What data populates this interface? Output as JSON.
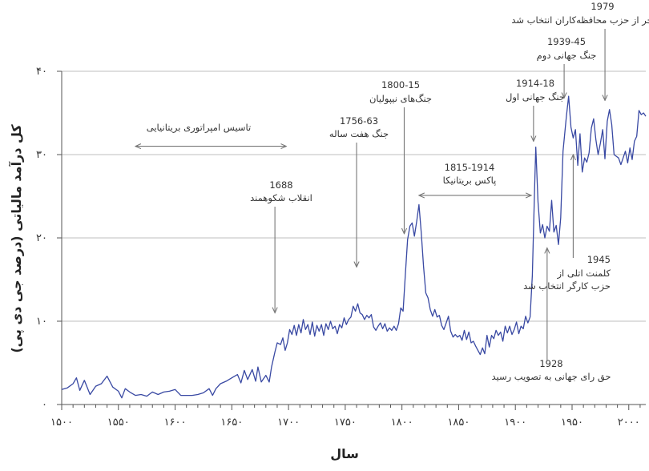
{
  "chart_data": {
    "type": "line",
    "title": "",
    "xlabel": "سال",
    "ylabel": "کل درآمد مالیاتی (درصد جی دی پی)",
    "xlim": [
      1500,
      2015
    ],
    "ylim": [
      0,
      40
    ],
    "x_ticks": [
      1500,
      1550,
      1600,
      1650,
      1700,
      1750,
      1800,
      1850,
      1900,
      1950,
      2000
    ],
    "x_tick_labels": [
      "۱۵۰۰",
      "۱۵۵۰",
      "۱۶۰۰",
      "۱۶۵۰",
      "۱۷۰۰",
      "۱۷۵۰",
      "۱۸۰۰",
      "۱۸۵۰",
      "۱۹۰۰",
      "۱۹۵۰",
      "۲۰۰۰"
    ],
    "y_ticks": [
      0,
      10,
      20,
      30,
      40
    ],
    "y_tick_labels": [
      "۰",
      "۱۰",
      "۲۰",
      "۳۰",
      "۴۰"
    ],
    "grid": true,
    "series": [
      {
        "name": "کل درآمد مالیاتی",
        "color": "#3949a3",
        "points": [
          [
            1500,
            1.8
          ],
          [
            1505,
            2.0
          ],
          [
            1510,
            2.5
          ],
          [
            1513,
            3.2
          ],
          [
            1516,
            1.7
          ],
          [
            1520,
            2.9
          ],
          [
            1525,
            1.2
          ],
          [
            1530,
            2.2
          ],
          [
            1535,
            2.5
          ],
          [
            1540,
            3.4
          ],
          [
            1545,
            2.1
          ],
          [
            1550,
            1.6
          ],
          [
            1553,
            0.8
          ],
          [
            1556,
            1.9
          ],
          [
            1560,
            1.5
          ],
          [
            1565,
            1.1
          ],
          [
            1570,
            1.2
          ],
          [
            1575,
            1.0
          ],
          [
            1580,
            1.5
          ],
          [
            1585,
            1.2
          ],
          [
            1590,
            1.5
          ],
          [
            1595,
            1.6
          ],
          [
            1600,
            1.8
          ],
          [
            1605,
            1.1
          ],
          [
            1610,
            1.1
          ],
          [
            1615,
            1.1
          ],
          [
            1620,
            1.2
          ],
          [
            1625,
            1.4
          ],
          [
            1630,
            1.9
          ],
          [
            1633,
            1.1
          ],
          [
            1636,
            1.9
          ],
          [
            1640,
            2.5
          ],
          [
            1645,
            2.8
          ],
          [
            1650,
            3.2
          ],
          [
            1655,
            3.6
          ],
          [
            1658,
            2.6
          ],
          [
            1661,
            4.1
          ],
          [
            1664,
            3.0
          ],
          [
            1668,
            4.2
          ],
          [
            1671,
            2.8
          ],
          [
            1673,
            4.5
          ],
          [
            1676,
            2.7
          ],
          [
            1680,
            3.5
          ],
          [
            1683,
            2.7
          ],
          [
            1685,
            4.5
          ],
          [
            1688,
            6.3
          ],
          [
            1690,
            7.4
          ],
          [
            1693,
            7.2
          ],
          [
            1695,
            8.0
          ],
          [
            1697,
            6.5
          ],
          [
            1699,
            7.4
          ],
          [
            1701,
            9.0
          ],
          [
            1703,
            8.4
          ],
          [
            1705,
            9.5
          ],
          [
            1707,
            8.3
          ],
          [
            1709,
            9.6
          ],
          [
            1711,
            8.6
          ],
          [
            1713,
            10.2
          ],
          [
            1715,
            9.0
          ],
          [
            1717,
            9.6
          ],
          [
            1719,
            8.4
          ],
          [
            1721,
            9.9
          ],
          [
            1723,
            8.2
          ],
          [
            1725,
            9.5
          ],
          [
            1727,
            8.8
          ],
          [
            1729,
            9.6
          ],
          [
            1731,
            8.3
          ],
          [
            1733,
            9.7
          ],
          [
            1735,
            9.0
          ],
          [
            1737,
            10.0
          ],
          [
            1739,
            9.1
          ],
          [
            1741,
            9.4
          ],
          [
            1743,
            8.5
          ],
          [
            1745,
            9.6
          ],
          [
            1747,
            9.2
          ],
          [
            1749,
            10.4
          ],
          [
            1751,
            9.6
          ],
          [
            1753,
            10.2
          ],
          [
            1755,
            10.5
          ],
          [
            1757,
            11.8
          ],
          [
            1759,
            11.2
          ],
          [
            1761,
            12.1
          ],
          [
            1763,
            11.0
          ],
          [
            1765,
            10.8
          ],
          [
            1767,
            10.2
          ],
          [
            1769,
            10.7
          ],
          [
            1771,
            10.4
          ],
          [
            1773,
            10.8
          ],
          [
            1775,
            9.3
          ],
          [
            1777,
            8.9
          ],
          [
            1779,
            9.4
          ],
          [
            1781,
            9.8
          ],
          [
            1783,
            9.1
          ],
          [
            1785,
            9.7
          ],
          [
            1787,
            8.8
          ],
          [
            1789,
            9.2
          ],
          [
            1791,
            8.9
          ],
          [
            1793,
            9.4
          ],
          [
            1795,
            8.9
          ],
          [
            1797,
            9.7
          ],
          [
            1799,
            11.6
          ],
          [
            1801,
            11.2
          ],
          [
            1803,
            15.6
          ],
          [
            1805,
            19.8
          ],
          [
            1807,
            21.4
          ],
          [
            1809,
            21.8
          ],
          [
            1811,
            20.2
          ],
          [
            1813,
            22.0
          ],
          [
            1815,
            24.0
          ],
          [
            1817,
            20.7
          ],
          [
            1819,
            16.6
          ],
          [
            1821,
            13.4
          ],
          [
            1823,
            12.8
          ],
          [
            1825,
            11.4
          ],
          [
            1827,
            10.6
          ],
          [
            1829,
            11.4
          ],
          [
            1831,
            10.5
          ],
          [
            1833,
            10.7
          ],
          [
            1835,
            9.5
          ],
          [
            1837,
            9.0
          ],
          [
            1839,
            9.8
          ],
          [
            1841,
            10.6
          ],
          [
            1843,
            8.8
          ],
          [
            1845,
            8.1
          ],
          [
            1847,
            8.4
          ],
          [
            1849,
            8.1
          ],
          [
            1851,
            8.3
          ],
          [
            1853,
            7.7
          ],
          [
            1855,
            8.9
          ],
          [
            1857,
            7.8
          ],
          [
            1859,
            8.7
          ],
          [
            1861,
            7.4
          ],
          [
            1863,
            7.6
          ],
          [
            1865,
            7.0
          ],
          [
            1867,
            6.5
          ],
          [
            1869,
            6.0
          ],
          [
            1871,
            6.8
          ],
          [
            1873,
            6.1
          ],
          [
            1875,
            8.3
          ],
          [
            1877,
            6.9
          ],
          [
            1879,
            8.3
          ],
          [
            1881,
            7.9
          ],
          [
            1883,
            8.9
          ],
          [
            1885,
            8.3
          ],
          [
            1887,
            8.7
          ],
          [
            1889,
            7.6
          ],
          [
            1891,
            9.4
          ],
          [
            1893,
            8.6
          ],
          [
            1895,
            9.4
          ],
          [
            1897,
            8.4
          ],
          [
            1899,
            9.0
          ],
          [
            1901,
            9.9
          ],
          [
            1903,
            8.5
          ],
          [
            1905,
            9.4
          ],
          [
            1907,
            9.1
          ],
          [
            1909,
            10.6
          ],
          [
            1911,
            9.8
          ],
          [
            1913,
            10.5
          ],
          [
            1915,
            15.5
          ],
          [
            1917,
            26.2
          ],
          [
            1918,
            30.9
          ],
          [
            1920,
            24.3
          ],
          [
            1922,
            20.6
          ],
          [
            1924,
            21.6
          ],
          [
            1926,
            20.0
          ],
          [
            1928,
            21.4
          ],
          [
            1930,
            20.8
          ],
          [
            1932,
            24.5
          ],
          [
            1934,
            20.7
          ],
          [
            1936,
            21.5
          ],
          [
            1938,
            19.2
          ],
          [
            1940,
            22.4
          ],
          [
            1942,
            30.4
          ],
          [
            1944,
            33.2
          ],
          [
            1945,
            34.6
          ],
          [
            1947,
            37.0
          ],
          [
            1949,
            33.3
          ],
          [
            1951,
            32.0
          ],
          [
            1953,
            33.0
          ],
          [
            1955,
            28.7
          ],
          [
            1957,
            32.5
          ],
          [
            1959,
            27.9
          ],
          [
            1961,
            29.6
          ],
          [
            1963,
            29.1
          ],
          [
            1965,
            30.2
          ],
          [
            1967,
            33.2
          ],
          [
            1969,
            34.3
          ],
          [
            1971,
            31.8
          ],
          [
            1973,
            30.0
          ],
          [
            1975,
            31.4
          ],
          [
            1977,
            33.0
          ],
          [
            1979,
            29.5
          ],
          [
            1981,
            34.0
          ],
          [
            1983,
            35.4
          ],
          [
            1985,
            33.6
          ],
          [
            1987,
            30.0
          ],
          [
            1989,
            29.8
          ],
          [
            1991,
            29.6
          ],
          [
            1993,
            28.8
          ],
          [
            1995,
            29.6
          ],
          [
            1997,
            30.4
          ],
          [
            1999,
            29.0
          ],
          [
            2001,
            30.8
          ],
          [
            2003,
            29.4
          ],
          [
            2005,
            31.6
          ],
          [
            2007,
            32.2
          ],
          [
            2009,
            35.3
          ],
          [
            2011,
            34.8
          ],
          [
            2013,
            35.0
          ],
          [
            2015,
            34.6
          ]
        ]
      }
    ],
    "annotations": [
      {
        "id": "empire",
        "year_label": "",
        "text": "تاسیس امپراتوری بریتانیایی",
        "range": [
          1565,
          1698
        ],
        "at_y": 31.0
      },
      {
        "id": "glorious",
        "year_label": "1688",
        "text": "انقلاب شکوهمند",
        "arrow_x": 1688,
        "arrow_to_y": 11.0
      },
      {
        "id": "seven-years",
        "year_label": "1756-63",
        "text": "جنگ هفت ساله",
        "arrow_x": 1760,
        "arrow_to_y": 16.5
      },
      {
        "id": "napoleonic",
        "year_label": "1800-15",
        "text": "جنگ‌های نیپولیان",
        "arrow_x": 1802,
        "arrow_to_y": 20.5
      },
      {
        "id": "pax",
        "year_label": "1815-1914",
        "text": "پاکس بریتانیکا",
        "range": [
          1815,
          1914
        ],
        "at_y": 25.1
      },
      {
        "id": "ww1",
        "year_label": "1914-18",
        "text": "جنگ جهانی اول",
        "arrow_x": 1916,
        "arrow_to_y": 31.6
      },
      {
        "id": "ww2",
        "year_label": "1939-45",
        "text": "جنگ جهانی دوم",
        "arrow_x": 1943,
        "arrow_to_y": 36.8
      },
      {
        "id": "thatcher",
        "year_label": "1979",
        "text": "مارگارت تاچر از حزب محافظه‌کاران انتخاب شد",
        "arrow_x": 1979,
        "arrow_to_y": 36.5
      },
      {
        "id": "attlee",
        "year_label": "1945",
        "text": "کلمنت اتلی از\nحزب کارگر انتخاب شد",
        "arrow_x": 1951,
        "arrow_to_y": 30.0
      },
      {
        "id": "suffrage",
        "year_label": "1928",
        "text": "حق رای جهانی به تصویب رسید",
        "arrow_x": 1928,
        "arrow_to_y": 18.8
      }
    ]
  }
}
